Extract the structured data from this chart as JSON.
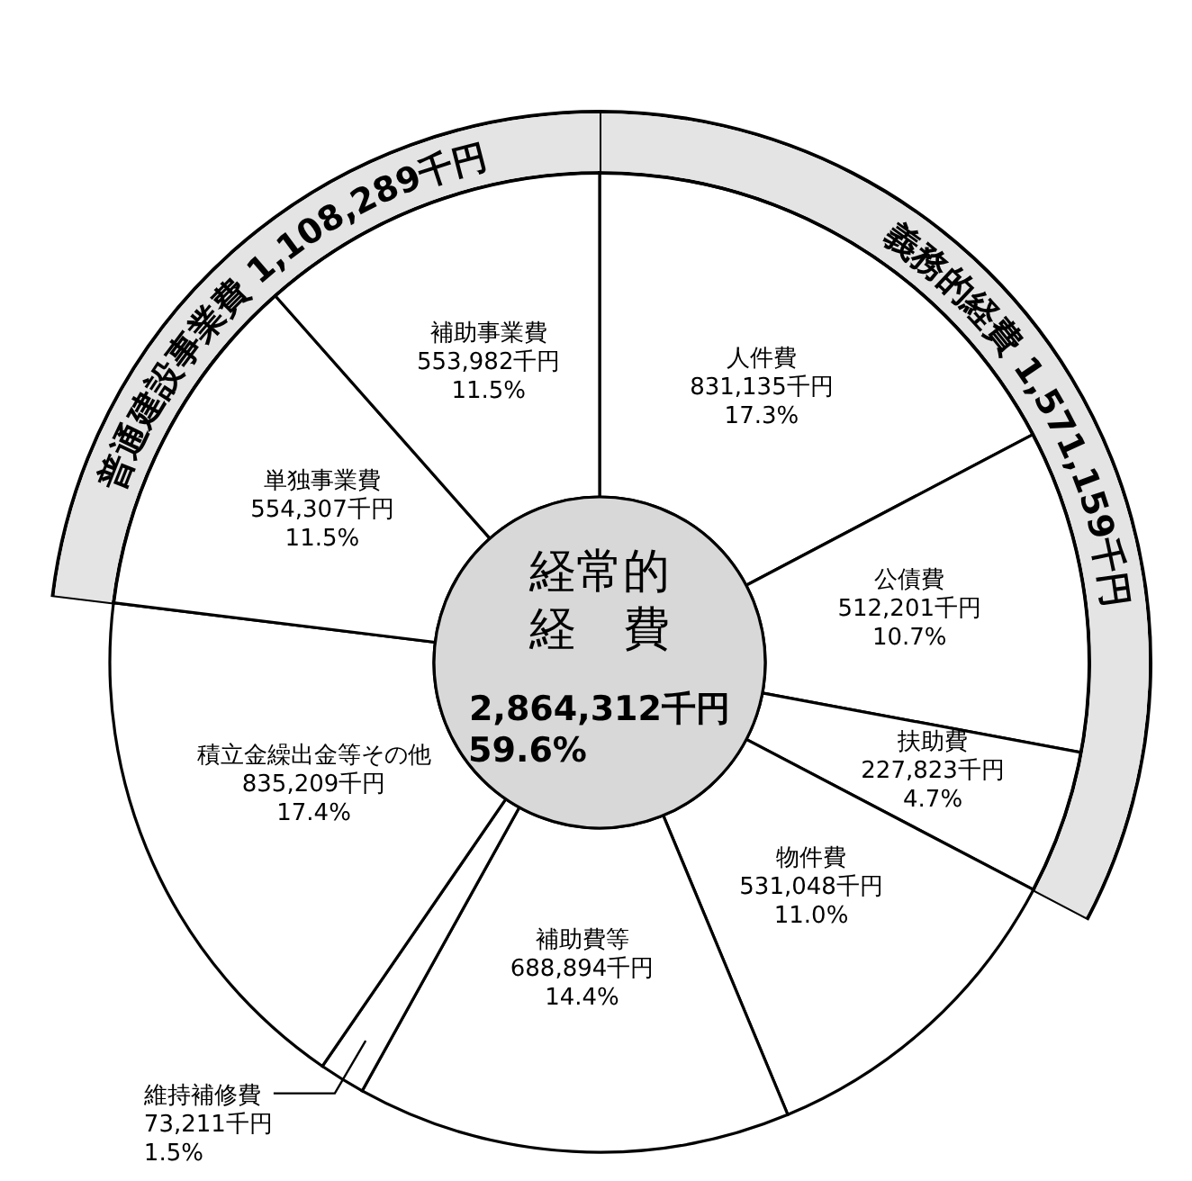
{
  "chart_data": {
    "type": "donut",
    "categories": [
      "人件費",
      "公債費",
      "扶助費",
      "物件費",
      "補助費等",
      "維持補修費",
      "積立金繰出金等その他",
      "単独事業費",
      "補助事業費"
    ],
    "values": [
      831135,
      512201,
      227823,
      531048,
      688894,
      73211,
      835209,
      554307,
      553982
    ],
    "value_labels": [
      "831,135千円\n17.3%",
      "512,201千円\n10.7%",
      "227,823千円\n4.7%",
      "531,048千円\n11.0%",
      "688,894千円\n14.4%",
      "73,211千円\n1.5%",
      "835,209千円\n17.4%",
      "554,307千円\n11.5%",
      "553,982千円\n11.5%"
    ],
    "colors": [
      "#ffffff",
      "#ffffff",
      "#ffffff",
      "#ffffff",
      "#ffffff",
      "#ffffff",
      "#ffffff",
      "#ffffff",
      "#ffffff"
    ],
    "annotations": [
      "経常的経費",
      "2,864,312千円\n59.6%",
      "義務的経費 1,571,159千円",
      "普通建設事業費 1,108,289千円"
    ]
  }
}
